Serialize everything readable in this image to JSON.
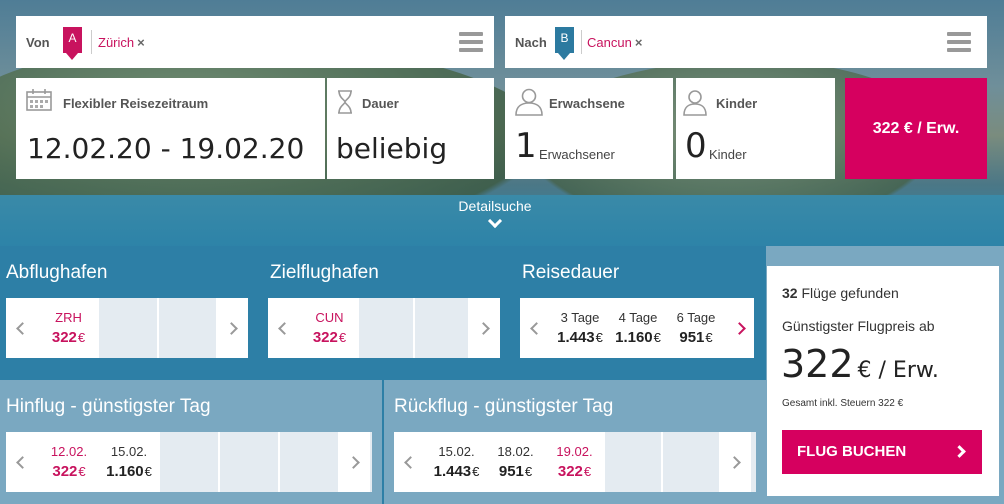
{
  "search": {
    "from": {
      "label": "Von",
      "pin": "A",
      "city": "Zürich",
      "remove": "×"
    },
    "to": {
      "label": "Nach",
      "pin": "B",
      "city": "Cancun",
      "remove": "×"
    },
    "dates": {
      "label": "Flexibler Reisezeitraum",
      "value": "12.02.20 - 19.02.20"
    },
    "duration": {
      "label": "Dauer",
      "value": "beliebig"
    },
    "adults": {
      "label": "Erwachsene",
      "count": "1",
      "unit": "Erwachsener"
    },
    "children": {
      "label": "Kinder",
      "count": "0",
      "unit": "Kinder"
    },
    "price_button": "322 € / Erw.",
    "details_toggle": "Detailsuche"
  },
  "filters": {
    "origin": {
      "title": "Abflughafen",
      "items": [
        {
          "code": "ZRH",
          "price": "322",
          "currency": "€"
        }
      ]
    },
    "destination": {
      "title": "Zielflughafen",
      "items": [
        {
          "code": "CUN",
          "price": "322",
          "currency": "€"
        }
      ]
    },
    "trip_length": {
      "title": "Reisedauer",
      "items": [
        {
          "label": "3 Tage",
          "price": "1.443",
          "currency": "€"
        },
        {
          "label": "4 Tage",
          "price": "1.160",
          "currency": "€"
        },
        {
          "label": "6 Tage",
          "price": "951",
          "currency": "€"
        }
      ]
    },
    "outbound": {
      "title": "Hinflug - günstigster Tag",
      "items": [
        {
          "date": "12.02.",
          "price": "322",
          "currency": "€"
        },
        {
          "date": "15.02.",
          "price": "1.160",
          "currency": "€"
        }
      ]
    },
    "return": {
      "title": "Rückflug - günstigster Tag",
      "items": [
        {
          "date": "15.02.",
          "price": "1.443",
          "currency": "€"
        },
        {
          "date": "18.02.",
          "price": "951",
          "currency": "€"
        },
        {
          "date": "19.02.",
          "price": "322",
          "currency": "€"
        }
      ]
    }
  },
  "summary": {
    "count": "32",
    "found_text": "Flüge gefunden",
    "cheapest_label": "Günstigster Flugpreis ab",
    "price": "322",
    "price_unit": "€ / Erw.",
    "tax_note": "Gesamt inkl. Steuern 322 €",
    "book_button": "FLUG BUCHEN"
  },
  "colors": {
    "accent": "#d6005f",
    "secondary": "#2c7aa0",
    "panel_dark": "#2d7fa6",
    "panel_light": "#7aa8c1"
  }
}
